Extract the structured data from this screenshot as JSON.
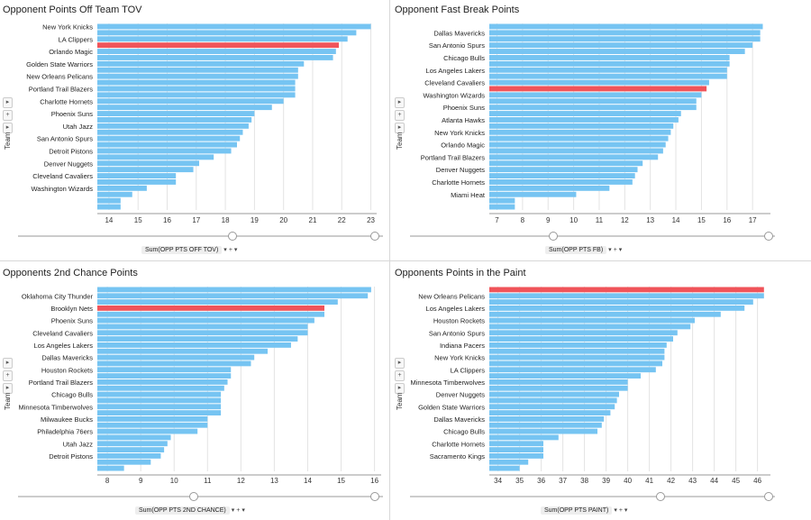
{
  "colors": {
    "bar": "#76c4f2",
    "highlight": "#f0545a",
    "grid": "#e3e3e3",
    "axis": "#999999"
  },
  "panels": [
    {
      "title": "Opponent Points Off Team TOV",
      "measure_label": "Sum(OPP PTS OFF TOV)",
      "axis_label": "Team",
      "chart_data": {
        "type": "bar",
        "orientation": "horizontal",
        "xlim": [
          13.6,
          23.2
        ],
        "ticks": [
          14,
          15,
          16,
          17,
          18,
          19,
          20,
          21,
          22,
          23
        ],
        "category_labels": [
          "New York Knicks",
          "",
          "LA Clippers",
          "",
          "Orlando Magic",
          "",
          "Golden State Warriors",
          "",
          "New Orleans Pelicans",
          "",
          "Portland Trail Blazers",
          "",
          "Charlotte Hornets",
          "",
          "Phoenix Suns",
          "",
          "Utah Jazz",
          "",
          "San Antonio Spurs",
          "",
          "Detroit Pistons",
          "",
          "Denver Nuggets",
          "",
          "Cleveland Cavaliers",
          "",
          "Washington Wizards",
          "",
          "",
          ""
        ],
        "values": [
          23.0,
          22.5,
          22.2,
          21.9,
          21.8,
          21.7,
          20.7,
          20.5,
          20.5,
          20.4,
          20.4,
          20.4,
          20.0,
          19.6,
          19.0,
          18.9,
          18.8,
          18.6,
          18.5,
          18.4,
          18.2,
          17.6,
          17.1,
          16.9,
          16.3,
          16.3,
          15.3,
          14.8,
          14.4,
          14.4
        ],
        "highlight_index": 3
      }
    },
    {
      "title": "Opponent Fast Break Points",
      "measure_label": "Sum(OPP PTS FB)",
      "axis_label": "Team",
      "chart_data": {
        "type": "bar",
        "orientation": "horizontal",
        "xlim": [
          6.7,
          17.7
        ],
        "ticks": [
          7,
          8,
          9,
          10,
          11,
          12,
          13,
          14,
          15,
          16,
          17
        ],
        "category_labels": [
          "",
          "Dallas Mavericks",
          "",
          "San Antonio Spurs",
          "",
          "Chicago Bulls",
          "",
          "Los Angeles Lakers",
          "",
          "Cleveland Cavaliers",
          "",
          "Washington Wizards",
          "",
          "Phoenix Suns",
          "",
          "Atlanta Hawks",
          "",
          "New York Knicks",
          "",
          "Orlando Magic",
          "",
          "Portland Trail Blazers",
          "",
          "Denver Nuggets",
          "",
          "Charlotte Hornets",
          "",
          "Miami Heat",
          "",
          ""
        ],
        "values": [
          17.4,
          17.3,
          17.3,
          17.0,
          16.7,
          16.1,
          16.1,
          16.0,
          16.0,
          15.3,
          15.2,
          15.0,
          14.8,
          14.8,
          14.2,
          14.1,
          13.9,
          13.8,
          13.7,
          13.6,
          13.5,
          13.3,
          12.7,
          12.5,
          12.4,
          12.3,
          11.4,
          10.1,
          7.7,
          7.7
        ],
        "highlight_index": 10
      }
    },
    {
      "title": "Opponents 2nd Chance Points",
      "measure_label": "Sum(OPP PTS 2ND CHANCE)",
      "axis_label": "Team",
      "chart_data": {
        "type": "bar",
        "orientation": "horizontal",
        "xlim": [
          7.7,
          16.2
        ],
        "ticks": [
          8,
          9,
          10,
          11,
          12,
          13,
          14,
          15,
          16
        ],
        "category_labels": [
          "",
          "Oklahoma City Thunder",
          "",
          "Brooklyn Nets",
          "",
          "Phoenix Suns",
          "",
          "Cleveland Cavaliers",
          "",
          "Los Angeles Lakers",
          "",
          "Dallas Mavericks",
          "",
          "Houston Rockets",
          "",
          "Portland Trail Blazers",
          "",
          "Chicago Bulls",
          "",
          "Minnesota Timberwolves",
          "",
          "Milwaukee Bucks",
          "",
          "Philadelphia 76ers",
          "",
          "Utah Jazz",
          "",
          "Detroit Pistons",
          "",
          ""
        ],
        "values": [
          15.9,
          15.8,
          14.9,
          14.5,
          14.5,
          14.2,
          14.0,
          14.0,
          13.7,
          13.5,
          12.8,
          12.4,
          12.3,
          11.7,
          11.7,
          11.6,
          11.5,
          11.4,
          11.4,
          11.4,
          11.4,
          11.0,
          11.0,
          10.7,
          9.9,
          9.8,
          9.7,
          9.6,
          9.3,
          8.5
        ],
        "highlight_index": 3
      }
    },
    {
      "title": "Opponents Points in the Paint",
      "measure_label": "Sum(OPP PTS PAINT)",
      "axis_label": "Team",
      "chart_data": {
        "type": "bar",
        "orientation": "horizontal",
        "xlim": [
          33.6,
          46.6
        ],
        "ticks": [
          34,
          35,
          36,
          37,
          38,
          39,
          40,
          41,
          42,
          43,
          44,
          45,
          46
        ],
        "category_labels": [
          "",
          "New Orleans Pelicans",
          "",
          "Los Angeles Lakers",
          "",
          "Houston Rockets",
          "",
          "San Antonio Spurs",
          "",
          "Indiana Pacers",
          "",
          "New York Knicks",
          "",
          "LA Clippers",
          "",
          "Minnesota Timberwolves",
          "",
          "Denver Nuggets",
          "",
          "Golden State Warriors",
          "",
          "Dallas Mavericks",
          "",
          "Chicago Bulls",
          "",
          "Charlotte Hornets",
          "",
          "Sacramento Kings",
          "",
          ""
        ],
        "values": [
          46.3,
          46.3,
          45.8,
          45.4,
          44.3,
          43.1,
          42.9,
          42.3,
          42.1,
          41.8,
          41.7,
          41.7,
          41.6,
          41.3,
          40.6,
          40.0,
          40.0,
          39.6,
          39.5,
          39.4,
          39.2,
          38.9,
          38.8,
          38.6,
          36.8,
          36.1,
          36.1,
          36.1,
          35.4,
          35.0
        ],
        "highlight_index": 0
      }
    }
  ]
}
